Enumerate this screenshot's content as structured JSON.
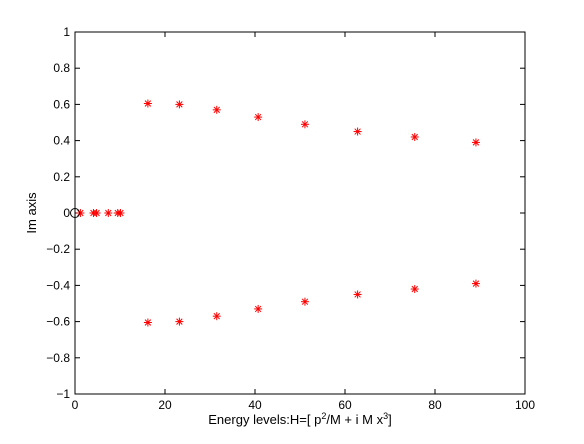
{
  "chart_data": {
    "type": "scatter",
    "xlabel": {
      "prefix": "Energy levels:H=[ p",
      "sup1": "2",
      "middle": "/M + i M x",
      "sup2": "3",
      "suffix": "]"
    },
    "ylabel": "Im axis",
    "xlim": [
      0,
      100
    ],
    "ylim": [
      -1,
      1
    ],
    "xticks": [
      0,
      20,
      40,
      60,
      80,
      100
    ],
    "xtick_labels": [
      "0",
      "20",
      "40",
      "60",
      "80",
      "100"
    ],
    "yticks": [
      -1,
      -0.8,
      -0.6,
      -0.4,
      -0.2,
      0,
      0.2,
      0.4,
      0.6,
      0.8,
      1
    ],
    "ytick_labels": [
      "−1",
      "−0.8",
      "−0.6",
      "−0.4",
      "−0.2",
      "0",
      "0.2",
      "0.4",
      "0.6",
      "0.8",
      "1"
    ],
    "grid": false,
    "series": [
      {
        "marker": "asterisk",
        "color": "#ff0000",
        "x": [
          1.2,
          4.1,
          4.8,
          7.4,
          9.5,
          10.1,
          16.2,
          23.2,
          31.5,
          40.7,
          51.1,
          62.8,
          75.5,
          89.1,
          16.2,
          23.2,
          31.5,
          40.7,
          51.1,
          62.8,
          75.5,
          89.1
        ],
        "y": [
          0,
          0,
          0,
          0,
          0,
          0,
          0.605,
          0.6,
          0.57,
          0.53,
          0.49,
          0.45,
          0.42,
          0.39,
          -0.605,
          -0.6,
          -0.57,
          -0.53,
          -0.49,
          -0.45,
          -0.42,
          -0.39
        ]
      },
      {
        "marker": "circle",
        "color": "#000000",
        "x": [
          0
        ],
        "y": [
          0
        ]
      }
    ]
  }
}
